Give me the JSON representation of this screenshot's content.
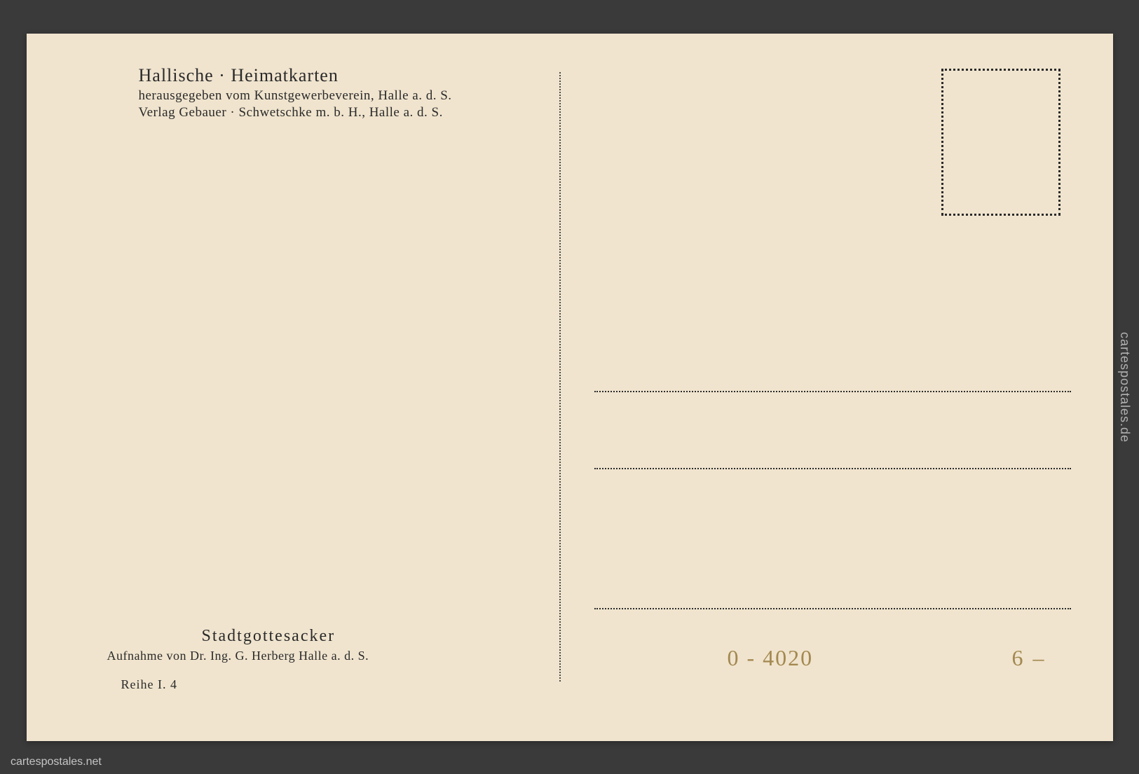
{
  "postcard": {
    "background_color": "#f0e4ce",
    "text_color": "#2a2a2a",
    "header": {
      "title": "Hallische · Heimatkarten",
      "line1": "herausgegeben vom Kunstgewerbeverein, Halle a. d. S.",
      "line2": "Verlag Gebauer · Schwetschke m. b. H., Halle a. d. S."
    },
    "bottom": {
      "title": "Stadtgottesacker",
      "credit": "Aufnahme von Dr. Ing. G. Herberg Halle a. d. S.",
      "series": "Reihe I. 4"
    },
    "handwritten": {
      "code": "0 - 4020",
      "price": "6 –",
      "color": "#a38850"
    },
    "stamp_box": {
      "border_style": "dotted",
      "border_color": "#2a2a2a"
    },
    "address_lines": {
      "count": 3,
      "style": "dotted"
    }
  },
  "watermark": {
    "side": "cartespostales.de",
    "bottom": "cartespostales.net"
  }
}
